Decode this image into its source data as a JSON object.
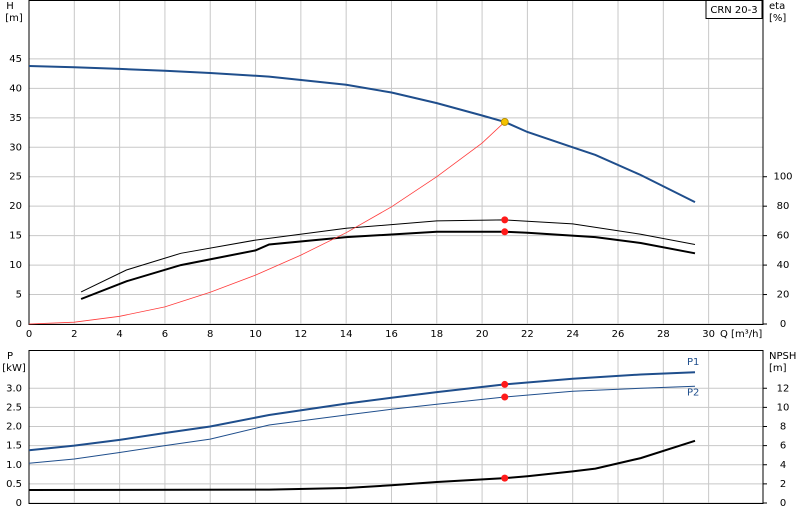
{
  "chart_data": [
    {
      "type": "line",
      "title": "CRN 20-3",
      "x_label": "Q [m³/h]",
      "y_label": "H",
      "y_unit": "[m]",
      "y2_label": "eta",
      "y2_unit": "[%]",
      "xlim": [
        0,
        32.4
      ],
      "xticks": [
        0,
        2,
        4,
        6,
        8,
        10,
        12,
        14,
        16,
        18,
        20,
        22,
        24,
        26,
        28,
        30
      ],
      "xtick_labels": true,
      "ylim": [
        0,
        55
      ],
      "yticks": [
        0,
        5,
        10,
        15,
        20,
        25,
        30,
        35,
        40,
        45
      ],
      "y2lim": [
        0,
        220
      ],
      "y2ticks": [
        0,
        20,
        40,
        60,
        80,
        100
      ],
      "grid": true,
      "series": [
        {
          "color": "#1f4e8c",
          "width": 2,
          "axis": "y",
          "x": [
            0,
            2,
            4,
            6,
            8,
            10.6,
            14,
            16,
            18,
            20,
            21,
            22,
            24,
            25,
            27,
            29.4
          ],
          "values": [
            43.8,
            43.6,
            43.3,
            43.0,
            42.6,
            42.0,
            40.6,
            39.3,
            37.5,
            35.4,
            34.3,
            32.6,
            30.0,
            28.7,
            25.3,
            20.7
          ]
        },
        {
          "color": "#000000",
          "width": 1,
          "axis": "y2",
          "x": [
            2.3,
            4.3,
            6.7,
            10,
            14,
            18,
            21,
            24,
            27,
            29.4
          ],
          "values": [
            21.8,
            36.7,
            48,
            57,
            65,
            70,
            70.7,
            68,
            61,
            54
          ]
        },
        {
          "color": "#000000",
          "width": 2,
          "axis": "y2",
          "x": [
            2.3,
            4.3,
            6.7,
            10,
            10.6,
            14,
            18,
            21,
            22,
            25,
            27,
            29.4
          ],
          "values": [
            17,
            29,
            40,
            50,
            54,
            59,
            62.6,
            62.6,
            62,
            59,
            55,
            48
          ]
        },
        {
          "color": "#ff3b3b",
          "width": 0.8,
          "axis": "y",
          "x": [
            0,
            2,
            4,
            6,
            8,
            10,
            12,
            14,
            16,
            18,
            20,
            21
          ],
          "values": [
            0,
            0.3,
            1.3,
            2.9,
            5.4,
            8.3,
            11.7,
            15.5,
            19.9,
            25,
            30.7,
            34.3
          ]
        }
      ],
      "markers": [
        {
          "x": 21,
          "value": 34.3,
          "color": "#f5c200",
          "axis": "y"
        },
        {
          "x": 21,
          "value": 70.7,
          "color": "#ff1a1a",
          "axis": "y2"
        },
        {
          "x": 21,
          "value": 62.6,
          "color": "#ff1a1a",
          "axis": "y2"
        }
      ]
    },
    {
      "type": "line",
      "y_label": "P",
      "y_unit": "[kW]",
      "y2_label": "NPSH",
      "y2_unit": "[m]",
      "xlim": [
        0,
        32.4
      ],
      "xticks": [
        0,
        2,
        4,
        6,
        8,
        10,
        12,
        14,
        16,
        18,
        20,
        22,
        24,
        26,
        28,
        30
      ],
      "xtick_labels": false,
      "ylim": [
        0,
        4
      ],
      "yticks": [
        0,
        0.5,
        {
          "value": 1,
          "label": "1.0"
        },
        1.5,
        {
          "value": 2,
          "label": "2.0"
        },
        2.5,
        {
          "value": 3,
          "label": "3.0"
        }
      ],
      "y2lim": [
        0,
        16
      ],
      "y2ticks": [
        0,
        2,
        4,
        6,
        8,
        10,
        12
      ],
      "grid": true,
      "series": [
        {
          "name": "P1",
          "color": "#1f4e8c",
          "width": 2,
          "axis": "y",
          "x": [
            0,
            2,
            4,
            6,
            8,
            10.6,
            14,
            16,
            18,
            21,
            24,
            27,
            29.4
          ],
          "values": [
            1.38,
            1.5,
            1.65,
            1.83,
            2.0,
            2.3,
            2.6,
            2.75,
            2.9,
            3.1,
            3.25,
            3.36,
            3.42
          ]
        },
        {
          "name": "P2",
          "color": "#1f4e8c",
          "width": 1,
          "axis": "y",
          "x": [
            0,
            2,
            4,
            6,
            8,
            10.6,
            14,
            16,
            18,
            21,
            24,
            27,
            29.4
          ],
          "values": [
            1.04,
            1.15,
            1.32,
            1.5,
            1.67,
            2.04,
            2.3,
            2.45,
            2.58,
            2.77,
            2.92,
            3.0,
            3.05
          ]
        },
        {
          "color": "#000000",
          "width": 2,
          "axis": "y2",
          "x": [
            0,
            10.6,
            14,
            16,
            18,
            21,
            22,
            24,
            25,
            27,
            29.4
          ],
          "values": [
            1.36,
            1.4,
            1.57,
            1.85,
            2.2,
            2.6,
            2.8,
            3.3,
            3.6,
            4.7,
            6.5
          ]
        }
      ],
      "markers": [
        {
          "x": 21,
          "value": 3.1,
          "color": "#ff1a1a",
          "axis": "y"
        },
        {
          "x": 21,
          "value": 2.77,
          "color": "#ff1a1a",
          "axis": "y"
        },
        {
          "x": 21,
          "value": 2.6,
          "color": "#ff1a1a",
          "axis": "y2"
        }
      ]
    }
  ]
}
